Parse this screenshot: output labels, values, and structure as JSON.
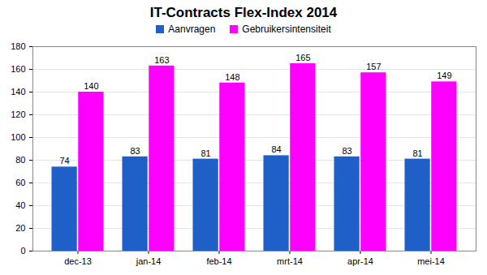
{
  "chart_data": {
    "type": "bar",
    "title": "IT-Contracts Flex-Index 2014",
    "categories": [
      "dec-13",
      "jan-14",
      "feb-14",
      "mrt-14",
      "apr-14",
      "mei-14"
    ],
    "series": [
      {
        "name": "Aanvragen",
        "color": "#1f5fc8",
        "values": [
          74,
          83,
          81,
          84,
          83,
          81
        ]
      },
      {
        "name": "Gebruikersintensiteit",
        "color": "#ff00ff",
        "values": [
          140,
          163,
          148,
          165,
          157,
          149
        ]
      }
    ],
    "ylim": [
      0,
      180
    ],
    "yticks": [
      0,
      20,
      40,
      60,
      80,
      100,
      120,
      140,
      160,
      180
    ],
    "grid": true,
    "legend": "top",
    "data_labels": true
  }
}
